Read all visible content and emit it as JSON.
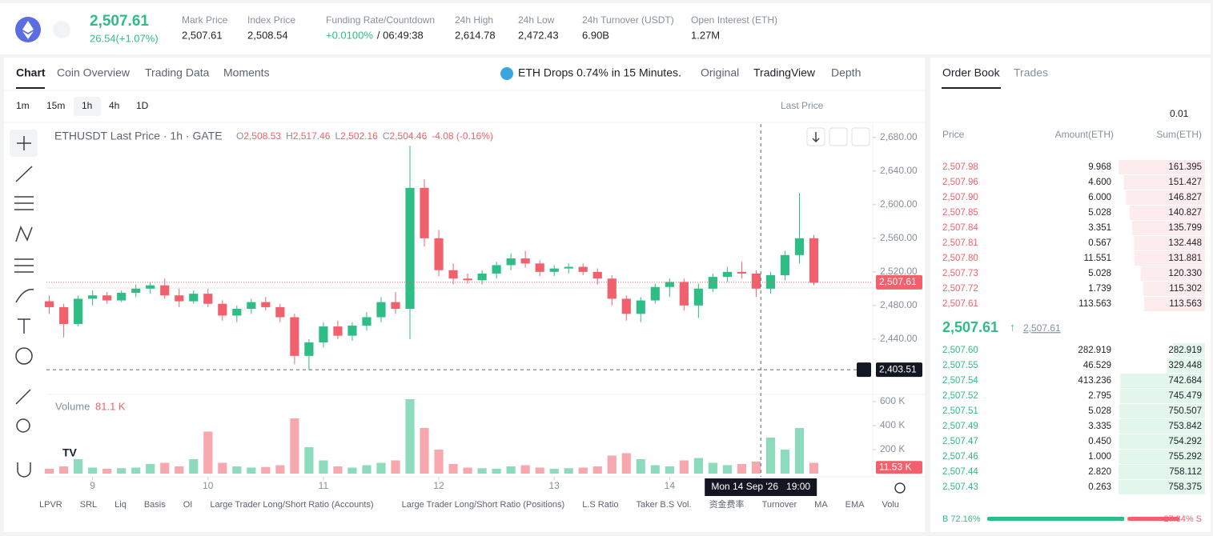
{
  "header": {
    "price": "2,507.61",
    "change": "26.54(+1.07%)",
    "stats": [
      {
        "label": "Mark Price",
        "value": "2,507.61"
      },
      {
        "label": "Index Price",
        "value": "2,508.54"
      },
      {
        "label": "Funding Rate/Countdown",
        "value": "+0.0100%",
        "extra": "/ 06:49:38"
      },
      {
        "label": "24h High",
        "value": "2,614.78"
      },
      {
        "label": "24h Low",
        "value": "2,472.43"
      },
      {
        "label": "24h Turnover (USDT)",
        "value": "6.90B"
      },
      {
        "label": "Open Interest (ETH)",
        "value": "1.27M"
      }
    ]
  },
  "tabs": [
    "Chart",
    "Coin Overview",
    "Trading Data",
    "Moments"
  ],
  "news": "ETH Drops 0.74% in 15 Minutes.",
  "views": [
    "Original",
    "TradingView",
    "Depth"
  ],
  "intervals": [
    "1m",
    "15m",
    "1h",
    "4h",
    "1D"
  ],
  "price_type": "Last Price",
  "chart_data": {
    "type": "candlestick",
    "title": "ETHUSDT Last Price · 1h · GATE",
    "ohlc_labels": [
      {
        "key": "O",
        "value": "2,508.53"
      },
      {
        "key": "H",
        "value": "2,517.46"
      },
      {
        "key": "L",
        "value": "2,502.16"
      },
      {
        "key": "C",
        "value": "2,504.46"
      }
    ],
    "change": "-4.08 (-0.16%)",
    "x": [
      8.625,
      8.75,
      8.875,
      9,
      9.125,
      9.25,
      9.375,
      9.5,
      9.625,
      9.75,
      9.875,
      10,
      10.125,
      10.25,
      10.375,
      10.5,
      10.625,
      10.75,
      10.875,
      11,
      11.125,
      11.25,
      11.375,
      11.5,
      11.625,
      11.75,
      11.875,
      12,
      12.125,
      12.25,
      12.375,
      12.5,
      12.625,
      12.75,
      12.875,
      13,
      13.125,
      13.25,
      13.375,
      13.5,
      13.625,
      13.75,
      13.875,
      14,
      14.125,
      14.25,
      14.375,
      14.5,
      14.625,
      14.75,
      14.875,
      15,
      15.125,
      15.25
    ],
    "open": [
      2485,
      2478,
      2458,
      2488,
      2492,
      2486,
      2495,
      2500,
      2504,
      2492,
      2485,
      2494,
      2482,
      2468,
      2476,
      2484,
      2478,
      2466,
      2420,
      2436,
      2455,
      2444,
      2456,
      2466,
      2484,
      2476,
      2620,
      2560,
      2522,
      2512,
      2510,
      2518,
      2528,
      2536,
      2530,
      2520,
      2524,
      2526,
      2520,
      2512,
      2488,
      2470,
      2486,
      2502,
      2508,
      2480,
      2500,
      2514,
      2520,
      2518,
      2500,
      2516,
      2540,
      2560
    ],
    "high": [
      2492,
      2482,
      2492,
      2498,
      2496,
      2498,
      2505,
      2508,
      2512,
      2500,
      2498,
      2500,
      2486,
      2480,
      2488,
      2490,
      2482,
      2470,
      2440,
      2460,
      2462,
      2460,
      2472,
      2490,
      2496,
      2670,
      2630,
      2570,
      2530,
      2518,
      2522,
      2532,
      2542,
      2545,
      2534,
      2528,
      2530,
      2530,
      2524,
      2516,
      2492,
      2490,
      2506,
      2512,
      2512,
      2506,
      2518,
      2526,
      2532,
      2522,
      2520,
      2545,
      2614,
      2564
    ],
    "low": [
      2470,
      2442,
      2455,
      2480,
      2482,
      2484,
      2490,
      2494,
      2488,
      2478,
      2482,
      2478,
      2462,
      2460,
      2470,
      2474,
      2460,
      2410,
      2403,
      2430,
      2440,
      2438,
      2450,
      2460,
      2470,
      2440,
      2550,
      2515,
      2505,
      2506,
      2505,
      2512,
      2522,
      2525,
      2515,
      2515,
      2518,
      2516,
      2505,
      2480,
      2462,
      2460,
      2482,
      2490,
      2474,
      2465,
      2496,
      2508,
      2512,
      2490,
      2494,
      2510,
      2530,
      2504
    ],
    "close": [
      2478,
      2458,
      2488,
      2492,
      2486,
      2495,
      2500,
      2504,
      2492,
      2485,
      2494,
      2482,
      2468,
      2476,
      2484,
      2478,
      2466,
      2420,
      2436,
      2455,
      2444,
      2456,
      2466,
      2484,
      2476,
      2620,
      2560,
      2522,
      2512,
      2510,
      2518,
      2528,
      2536,
      2530,
      2520,
      2524,
      2526,
      2520,
      2512,
      2488,
      2470,
      2486,
      2502,
      2508,
      2480,
      2500,
      2514,
      2520,
      2518,
      2500,
      2516,
      2540,
      2560,
      2507
    ],
    "xlim": [
      8.6,
      15.76
    ],
    "xticks": [
      9,
      10,
      11,
      12,
      13,
      14
    ],
    "ylim": [
      2377,
      2696
    ],
    "yticks": [
      {
        "value": 2440,
        "label": "2,440.00"
      },
      {
        "value": 2480,
        "label": "2,480.00"
      },
      {
        "value": 2520,
        "label": "2,520.00"
      },
      {
        "value": 2560,
        "label": "2,560.00"
      },
      {
        "value": 2600,
        "label": "2,600.00"
      },
      {
        "value": 2640,
        "label": "2,640.00"
      },
      {
        "value": 2680,
        "label": "2,680.00"
      }
    ],
    "last_price": {
      "value": 2507.61,
      "label": "2,507.61"
    },
    "crosshair": {
      "value": 2403.51,
      "label": "2,403.51",
      "x": 14.79,
      "time": "Mon 14 Sep '26   19:00"
    },
    "up_color": "#2ebd85",
    "down_color": "#f0616d",
    "volume": {
      "title": "Volume",
      "last": "81.1 K",
      "values": [
        40,
        60,
        120,
        50,
        40,
        45,
        50,
        80,
        90,
        60,
        120,
        350,
        90,
        60,
        50,
        55,
        70,
        460,
        220,
        110,
        60,
        50,
        70,
        90,
        110,
        620,
        380,
        200,
        80,
        50,
        45,
        40,
        60,
        70,
        50,
        40,
        45,
        50,
        60,
        150,
        170,
        120,
        70,
        60,
        110,
        130,
        90,
        70,
        80,
        100,
        300,
        200,
        380,
        90
      ],
      "ylim": [
        0,
        633
      ],
      "yticks": [
        {
          "value": 200,
          "label": "200 K"
        },
        {
          "value": 400,
          "label": "400 K"
        },
        {
          "value": 600,
          "label": "600 K"
        }
      ],
      "tag": {
        "value": 11.53,
        "label": "11.53 K"
      }
    }
  },
  "indicators": [
    "LPVR",
    "SRL",
    "Liq",
    "Basis",
    "OI",
    "Large Trader Long/Short Ratio (Accounts)",
    "Large Trader Long/Short Ratio (Positions)",
    "L.S Ratio",
    "Taker B.S Vol.",
    "资金费率",
    "Turnover",
    "MA",
    "EMA",
    "Volu"
  ],
  "order_book": {
    "tabs": [
      "Order Book",
      "Trades"
    ],
    "tick": "0.01",
    "columns": [
      "Price",
      "Amount(ETH)",
      "Sum(ETH)"
    ],
    "asks": [
      [
        "2,507.98",
        "9.968",
        "161.395"
      ],
      [
        "2,507.96",
        "4.600",
        "151.427"
      ],
      [
        "2,507.90",
        "6.000",
        "146.827"
      ],
      [
        "2,507.85",
        "5.028",
        "140.827"
      ],
      [
        "2,507.84",
        "3.351",
        "135.799"
      ],
      [
        "2,507.81",
        "0.567",
        "132.448"
      ],
      [
        "2,507.80",
        "11.551",
        "131.881"
      ],
      [
        "2,507.73",
        "5.028",
        "120.330"
      ],
      [
        "2,507.72",
        "1.739",
        "115.302"
      ],
      [
        "2,507.61",
        "113.563",
        "113.563"
      ]
    ],
    "mid": "2,507.61",
    "mid_mark": "2,507.61",
    "bids": [
      [
        "2,507.60",
        "282.919",
        "282.919"
      ],
      [
        "2,507.55",
        "46.529",
        "329.448"
      ],
      [
        "2,507.54",
        "413.236",
        "742.684"
      ],
      [
        "2,507.52",
        "2.795",
        "745.479"
      ],
      [
        "2,507.51",
        "5.028",
        "750.507"
      ],
      [
        "2,507.49",
        "3.335",
        "753.842"
      ],
      [
        "2,507.47",
        "0.450",
        "754.292"
      ],
      [
        "2,507.46",
        "1.000",
        "755.292"
      ],
      [
        "2,507.44",
        "2.820",
        "758.112"
      ],
      [
        "2,507.43",
        "0.263",
        "758.375"
      ]
    ],
    "buy_pct": 72.16,
    "buy_label": "B 72.16%",
    "sell_label": "27.84% S"
  }
}
